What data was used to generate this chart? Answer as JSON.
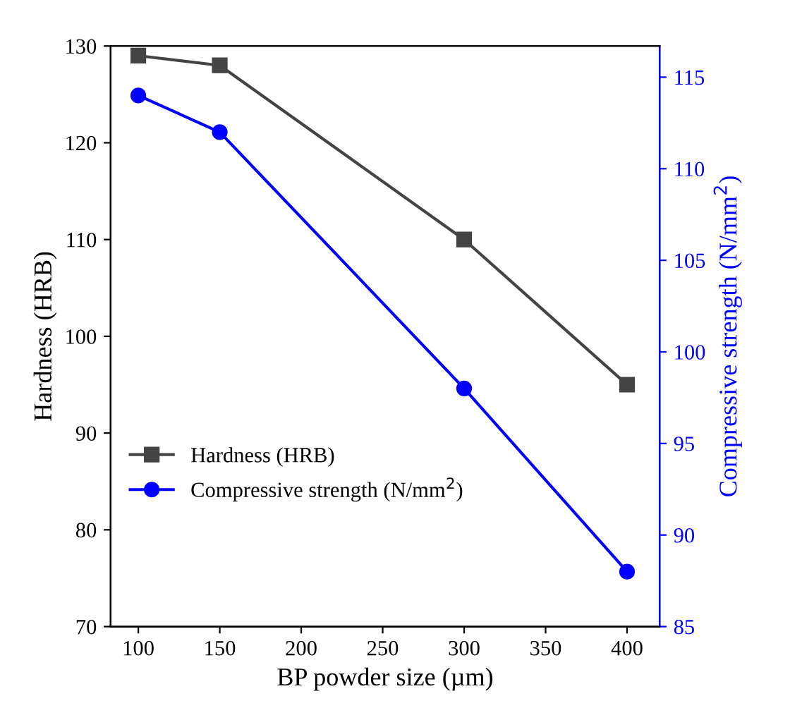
{
  "chart_data": {
    "type": "line",
    "xlabel": "BP powder size (µm)",
    "ylabel": "Hardness (HRB)",
    "y2label": "Compressive strength (N/mm$^{2}$)",
    "x": [
      100,
      150,
      300,
      400
    ],
    "series": [
      {
        "name": "Hardness (HRB)",
        "color": "#444444",
        "values": [
          129,
          128,
          110,
          95
        ],
        "marker": "square"
      },
      {
        "name": "Compressive strength (N/mm$^{2}$)",
        "color": "#0000ff",
        "values": [
          114,
          112,
          98,
          88
        ],
        "marker": "circle",
        "axis": "y2"
      }
    ],
    "xlim": [
      83,
      420
    ],
    "xticks": [
      100,
      150,
      200,
      250,
      300,
      350,
      400
    ],
    "ylim": [
      70,
      130
    ],
    "yticks": [
      70,
      80,
      90,
      100,
      110,
      120,
      130
    ],
    "y2lim": [
      85,
      116.7
    ],
    "y2ticks": [
      85,
      90,
      95,
      100,
      105,
      110,
      115
    ],
    "grid": false,
    "legend": "left",
    "line_style": "solid"
  }
}
